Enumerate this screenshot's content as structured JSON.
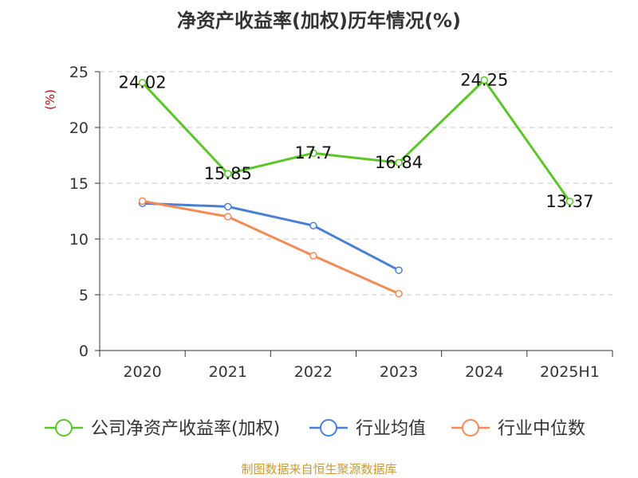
{
  "chart_data": {
    "type": "line",
    "title": "净资产收益率(加权)历年情况(%)",
    "ylabel": "(%)",
    "ylim": [
      0,
      25
    ],
    "yticks": [
      0,
      5,
      10,
      15,
      20,
      25
    ],
    "categories": [
      "2020",
      "2021",
      "2022",
      "2023",
      "2024",
      "2025H1"
    ],
    "grid": true,
    "legend_position": "bottom",
    "series": [
      {
        "name": "公司净资产收益率(加权)",
        "color": "#5bc628",
        "values": [
          24.02,
          15.85,
          17.7,
          16.84,
          24.25,
          13.37
        ],
        "labels": [
          "24.02",
          "15.85",
          "17.7",
          "16.84",
          "24.25",
          "13.37"
        ],
        "show_labels": true
      },
      {
        "name": "行业均值",
        "color": "#4a7fd6",
        "values": [
          13.2,
          12.9,
          11.2,
          7.2,
          null,
          null
        ],
        "show_labels": false
      },
      {
        "name": "行业中位数",
        "color": "#f48b57",
        "values": [
          13.4,
          12.0,
          8.5,
          5.1,
          null,
          null
        ],
        "show_labels": false
      }
    ]
  },
  "footer": {
    "source": "制图数据来自恒生聚源数据库"
  }
}
